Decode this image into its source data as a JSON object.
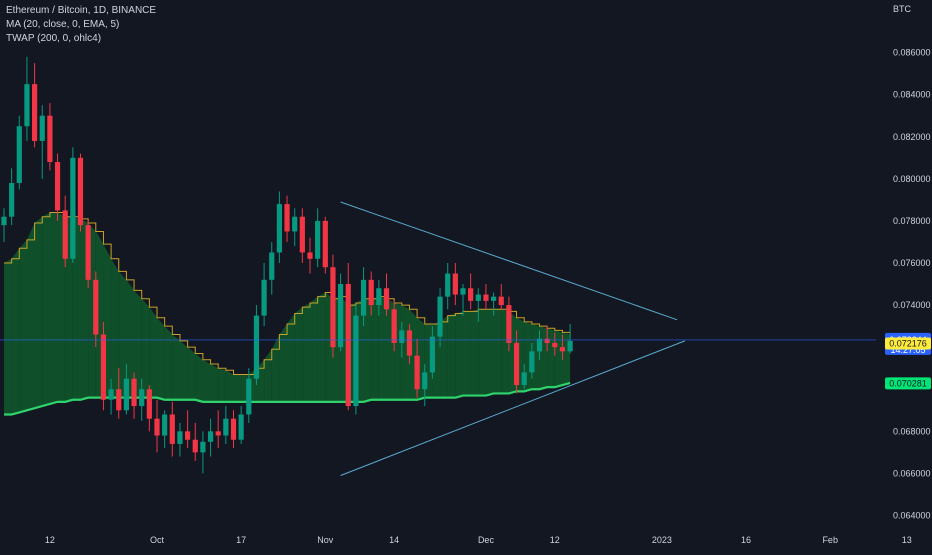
{
  "legend": {
    "symbol": "Ethereum / Bitcoin, 1D, BINANCE",
    "ma": "MA (20, close, 0, EMA, 5)",
    "twap": "TWAP (200, 0, ohlc4)"
  },
  "chart_data": {
    "type": "candlestick",
    "currency_label": "BTC",
    "ylim": [
      0.0635,
      0.0885
    ],
    "y_ticks": [
      {
        "value": 0.086,
        "label": "0.086000"
      },
      {
        "value": 0.084,
        "label": "0.084000"
      },
      {
        "value": 0.082,
        "label": "0.082000"
      },
      {
        "value": 0.08,
        "label": "0.080000"
      },
      {
        "value": 0.078,
        "label": "0.078000"
      },
      {
        "value": 0.076,
        "label": "0.076000"
      },
      {
        "value": 0.074,
        "label": "0.074000"
      },
      {
        "value": 0.068,
        "label": "0.068000"
      },
      {
        "value": 0.066,
        "label": "0.066000"
      },
      {
        "value": 0.064,
        "label": "0.064000"
      }
    ],
    "x_ticks": [
      {
        "index": 6,
        "label": "12"
      },
      {
        "index": 20,
        "label": "Oct"
      },
      {
        "index": 31,
        "label": "17"
      },
      {
        "index": 42,
        "label": "Nov"
      },
      {
        "index": 51,
        "label": "14"
      },
      {
        "index": 63,
        "label": "Dec"
      },
      {
        "index": 72,
        "label": "12"
      },
      {
        "index": 86,
        "label": "2023"
      },
      {
        "index": 97,
        "label": "16"
      },
      {
        "index": 108,
        "label": "Feb"
      },
      {
        "index": 118,
        "label": "13"
      }
    ],
    "candles": [
      [
        0.0778,
        0.0786,
        0.077,
        0.0782
      ],
      [
        0.0782,
        0.0805,
        0.0778,
        0.0798
      ],
      [
        0.0798,
        0.083,
        0.0795,
        0.0825
      ],
      [
        0.0825,
        0.0858,
        0.0818,
        0.0845
      ],
      [
        0.0845,
        0.0855,
        0.0815,
        0.0818
      ],
      [
        0.0818,
        0.0835,
        0.08,
        0.083
      ],
      [
        0.083,
        0.0836,
        0.0804,
        0.0808
      ],
      [
        0.0808,
        0.0812,
        0.078,
        0.0785
      ],
      [
        0.0785,
        0.0792,
        0.0758,
        0.0762
      ],
      [
        0.0762,
        0.0815,
        0.076,
        0.081
      ],
      [
        0.081,
        0.0812,
        0.0775,
        0.0778
      ],
      [
        0.0778,
        0.078,
        0.0748,
        0.0752
      ],
      [
        0.0752,
        0.0756,
        0.072,
        0.0726
      ],
      [
        0.0726,
        0.0732,
        0.069,
        0.0695
      ],
      [
        0.0695,
        0.0705,
        0.0688,
        0.07
      ],
      [
        0.07,
        0.071,
        0.0686,
        0.069
      ],
      [
        0.069,
        0.0712,
        0.0688,
        0.0705
      ],
      [
        0.0705,
        0.0708,
        0.0686,
        0.0692
      ],
      [
        0.0692,
        0.0705,
        0.0685,
        0.07
      ],
      [
        0.07,
        0.0702,
        0.068,
        0.0686
      ],
      [
        0.0686,
        0.0695,
        0.067,
        0.0678
      ],
      [
        0.0678,
        0.069,
        0.0672,
        0.0688
      ],
      [
        0.0688,
        0.0694,
        0.0668,
        0.0674
      ],
      [
        0.0674,
        0.0684,
        0.0668,
        0.068
      ],
      [
        0.068,
        0.069,
        0.0672,
        0.0676
      ],
      [
        0.0676,
        0.0684,
        0.0666,
        0.067
      ],
      [
        0.067,
        0.068,
        0.066,
        0.0675
      ],
      [
        0.0675,
        0.0686,
        0.0668,
        0.068
      ],
      [
        0.068,
        0.069,
        0.0672,
        0.0678
      ],
      [
        0.0678,
        0.0692,
        0.0674,
        0.0686
      ],
      [
        0.0686,
        0.069,
        0.0672,
        0.0676
      ],
      [
        0.0676,
        0.0692,
        0.0674,
        0.0688
      ],
      [
        0.0688,
        0.071,
        0.0684,
        0.0705
      ],
      [
        0.0705,
        0.074,
        0.0702,
        0.0735
      ],
      [
        0.0735,
        0.076,
        0.073,
        0.0752
      ],
      [
        0.0752,
        0.077,
        0.0745,
        0.0765
      ],
      [
        0.0765,
        0.0794,
        0.076,
        0.0788
      ],
      [
        0.0788,
        0.0792,
        0.077,
        0.0775
      ],
      [
        0.0775,
        0.0786,
        0.0768,
        0.0782
      ],
      [
        0.0782,
        0.0786,
        0.076,
        0.0765
      ],
      [
        0.0765,
        0.0772,
        0.0755,
        0.0762
      ],
      [
        0.0762,
        0.0786,
        0.0758,
        0.078
      ],
      [
        0.078,
        0.0782,
        0.0755,
        0.0758
      ],
      [
        0.0758,
        0.0764,
        0.0715,
        0.072
      ],
      [
        0.072,
        0.0755,
        0.0718,
        0.075
      ],
      [
        0.075,
        0.076,
        0.069,
        0.0692
      ],
      [
        0.0692,
        0.074,
        0.0688,
        0.0735
      ],
      [
        0.0735,
        0.0758,
        0.073,
        0.0752
      ],
      [
        0.0752,
        0.0756,
        0.0735,
        0.074
      ],
      [
        0.074,
        0.0752,
        0.0735,
        0.0748
      ],
      [
        0.0748,
        0.0755,
        0.0735,
        0.0738
      ],
      [
        0.0738,
        0.0742,
        0.0718,
        0.0722
      ],
      [
        0.0722,
        0.0732,
        0.0715,
        0.0728
      ],
      [
        0.0728,
        0.0731,
        0.0712,
        0.0716
      ],
      [
        0.0716,
        0.0724,
        0.0696,
        0.07
      ],
      [
        0.07,
        0.0712,
        0.0692,
        0.0708
      ],
      [
        0.0708,
        0.073,
        0.0705,
        0.0725
      ],
      [
        0.0725,
        0.0748,
        0.072,
        0.0744
      ],
      [
        0.0744,
        0.076,
        0.0738,
        0.0755
      ],
      [
        0.0755,
        0.076,
        0.074,
        0.0745
      ],
      [
        0.0745,
        0.075,
        0.0735,
        0.0748
      ],
      [
        0.0748,
        0.0755,
        0.0738,
        0.0742
      ],
      [
        0.0742,
        0.0748,
        0.0732,
        0.0745
      ],
      [
        0.0745,
        0.075,
        0.0738,
        0.0742
      ],
      [
        0.0742,
        0.0746,
        0.0735,
        0.0744
      ],
      [
        0.0744,
        0.075,
        0.0738,
        0.074
      ],
      [
        0.074,
        0.0744,
        0.0718,
        0.0722
      ],
      [
        0.0722,
        0.0728,
        0.0698,
        0.0702
      ],
      [
        0.0702,
        0.0712,
        0.07,
        0.0708
      ],
      [
        0.0708,
        0.0722,
        0.0705,
        0.0718
      ],
      [
        0.0718,
        0.0728,
        0.0714,
        0.0724
      ],
      [
        0.0724,
        0.073,
        0.0718,
        0.0722
      ],
      [
        0.0722,
        0.0727,
        0.0716,
        0.072
      ],
      [
        0.072,
        0.0726,
        0.0714,
        0.0718
      ],
      [
        0.0718,
        0.0731,
        0.0717,
        0.0723
      ]
    ],
    "ma_ema20": [
      0.076,
      0.0762,
      0.0767,
      0.0771,
      0.0779,
      0.0782,
      0.0784,
      0.0784,
      0.0782,
      0.0782,
      0.0781,
      0.0779,
      0.0775,
      0.0769,
      0.0762,
      0.0756,
      0.0752,
      0.0747,
      0.0743,
      0.0739,
      0.0734,
      0.073,
      0.0726,
      0.0723,
      0.072,
      0.0717,
      0.0714,
      0.0712,
      0.071,
      0.0709,
      0.0707,
      0.0707,
      0.0707,
      0.071,
      0.0714,
      0.0719,
      0.0726,
      0.0731,
      0.0736,
      0.0739,
      0.0741,
      0.0744,
      0.0746,
      0.0743,
      0.0744,
      0.074,
      0.0741,
      0.0743,
      0.0743,
      0.0744,
      0.0743,
      0.0741,
      0.074,
      0.0738,
      0.0734,
      0.0731,
      0.0731,
      0.0732,
      0.0735,
      0.0736,
      0.0737,
      0.0737,
      0.0738,
      0.0738,
      0.0738,
      0.0738,
      0.0737,
      0.0734,
      0.0732,
      0.0731,
      0.073,
      0.0729,
      0.0728,
      0.0727,
      0.0726
    ],
    "twap_200": [
      0.0688,
      0.0688,
      0.0689,
      0.069,
      0.0691,
      0.0692,
      0.0693,
      0.0694,
      0.0694,
      0.0695,
      0.0695,
      0.0696,
      0.0696,
      0.0696,
      0.0696,
      0.0696,
      0.0696,
      0.0696,
      0.0696,
      0.0696,
      0.0696,
      0.0695,
      0.0695,
      0.0695,
      0.0695,
      0.0695,
      0.0694,
      0.0694,
      0.0694,
      0.0694,
      0.0694,
      0.0694,
      0.0694,
      0.0694,
      0.0694,
      0.0694,
      0.0694,
      0.0694,
      0.0694,
      0.0694,
      0.0694,
      0.0694,
      0.0694,
      0.0694,
      0.0694,
      0.0694,
      0.0694,
      0.0694,
      0.0695,
      0.0695,
      0.0695,
      0.0695,
      0.0695,
      0.0695,
      0.0695,
      0.0696,
      0.0696,
      0.0696,
      0.0696,
      0.0696,
      0.0697,
      0.0697,
      0.0697,
      0.0697,
      0.0698,
      0.0698,
      0.0698,
      0.0699,
      0.0699,
      0.07,
      0.07,
      0.0701,
      0.0701,
      0.0702,
      0.0703
    ],
    "trendlines": [
      {
        "name": "upper",
        "from": [
          44,
          0.0789
        ],
        "to": [
          88,
          0.0733
        ]
      },
      {
        "name": "lower",
        "from": [
          44,
          0.0659
        ],
        "to": [
          89,
          0.0723
        ]
      }
    ],
    "price_line": 0.072344,
    "badges": [
      {
        "label": "0.072344",
        "sub": "14:27:05",
        "value": 0.072344,
        "color": "#2962ff",
        "text_color": "#ffffff"
      },
      {
        "label": "0.072176",
        "value": 0.072176,
        "color": "#ffeb3b",
        "text_color": "#131722"
      },
      {
        "label": "0.070281",
        "value": 0.070281,
        "color": "#00e676",
        "text_color": "#131722"
      }
    ],
    "colors": {
      "up": "#089981",
      "down": "#f23645",
      "ma": "#c9a227",
      "twap": "#2fd36b",
      "fill_above": "#0f5a2c",
      "fill_below": "#5c1d1d",
      "trendline": "#5aaad0",
      "background": "#131722"
    }
  }
}
